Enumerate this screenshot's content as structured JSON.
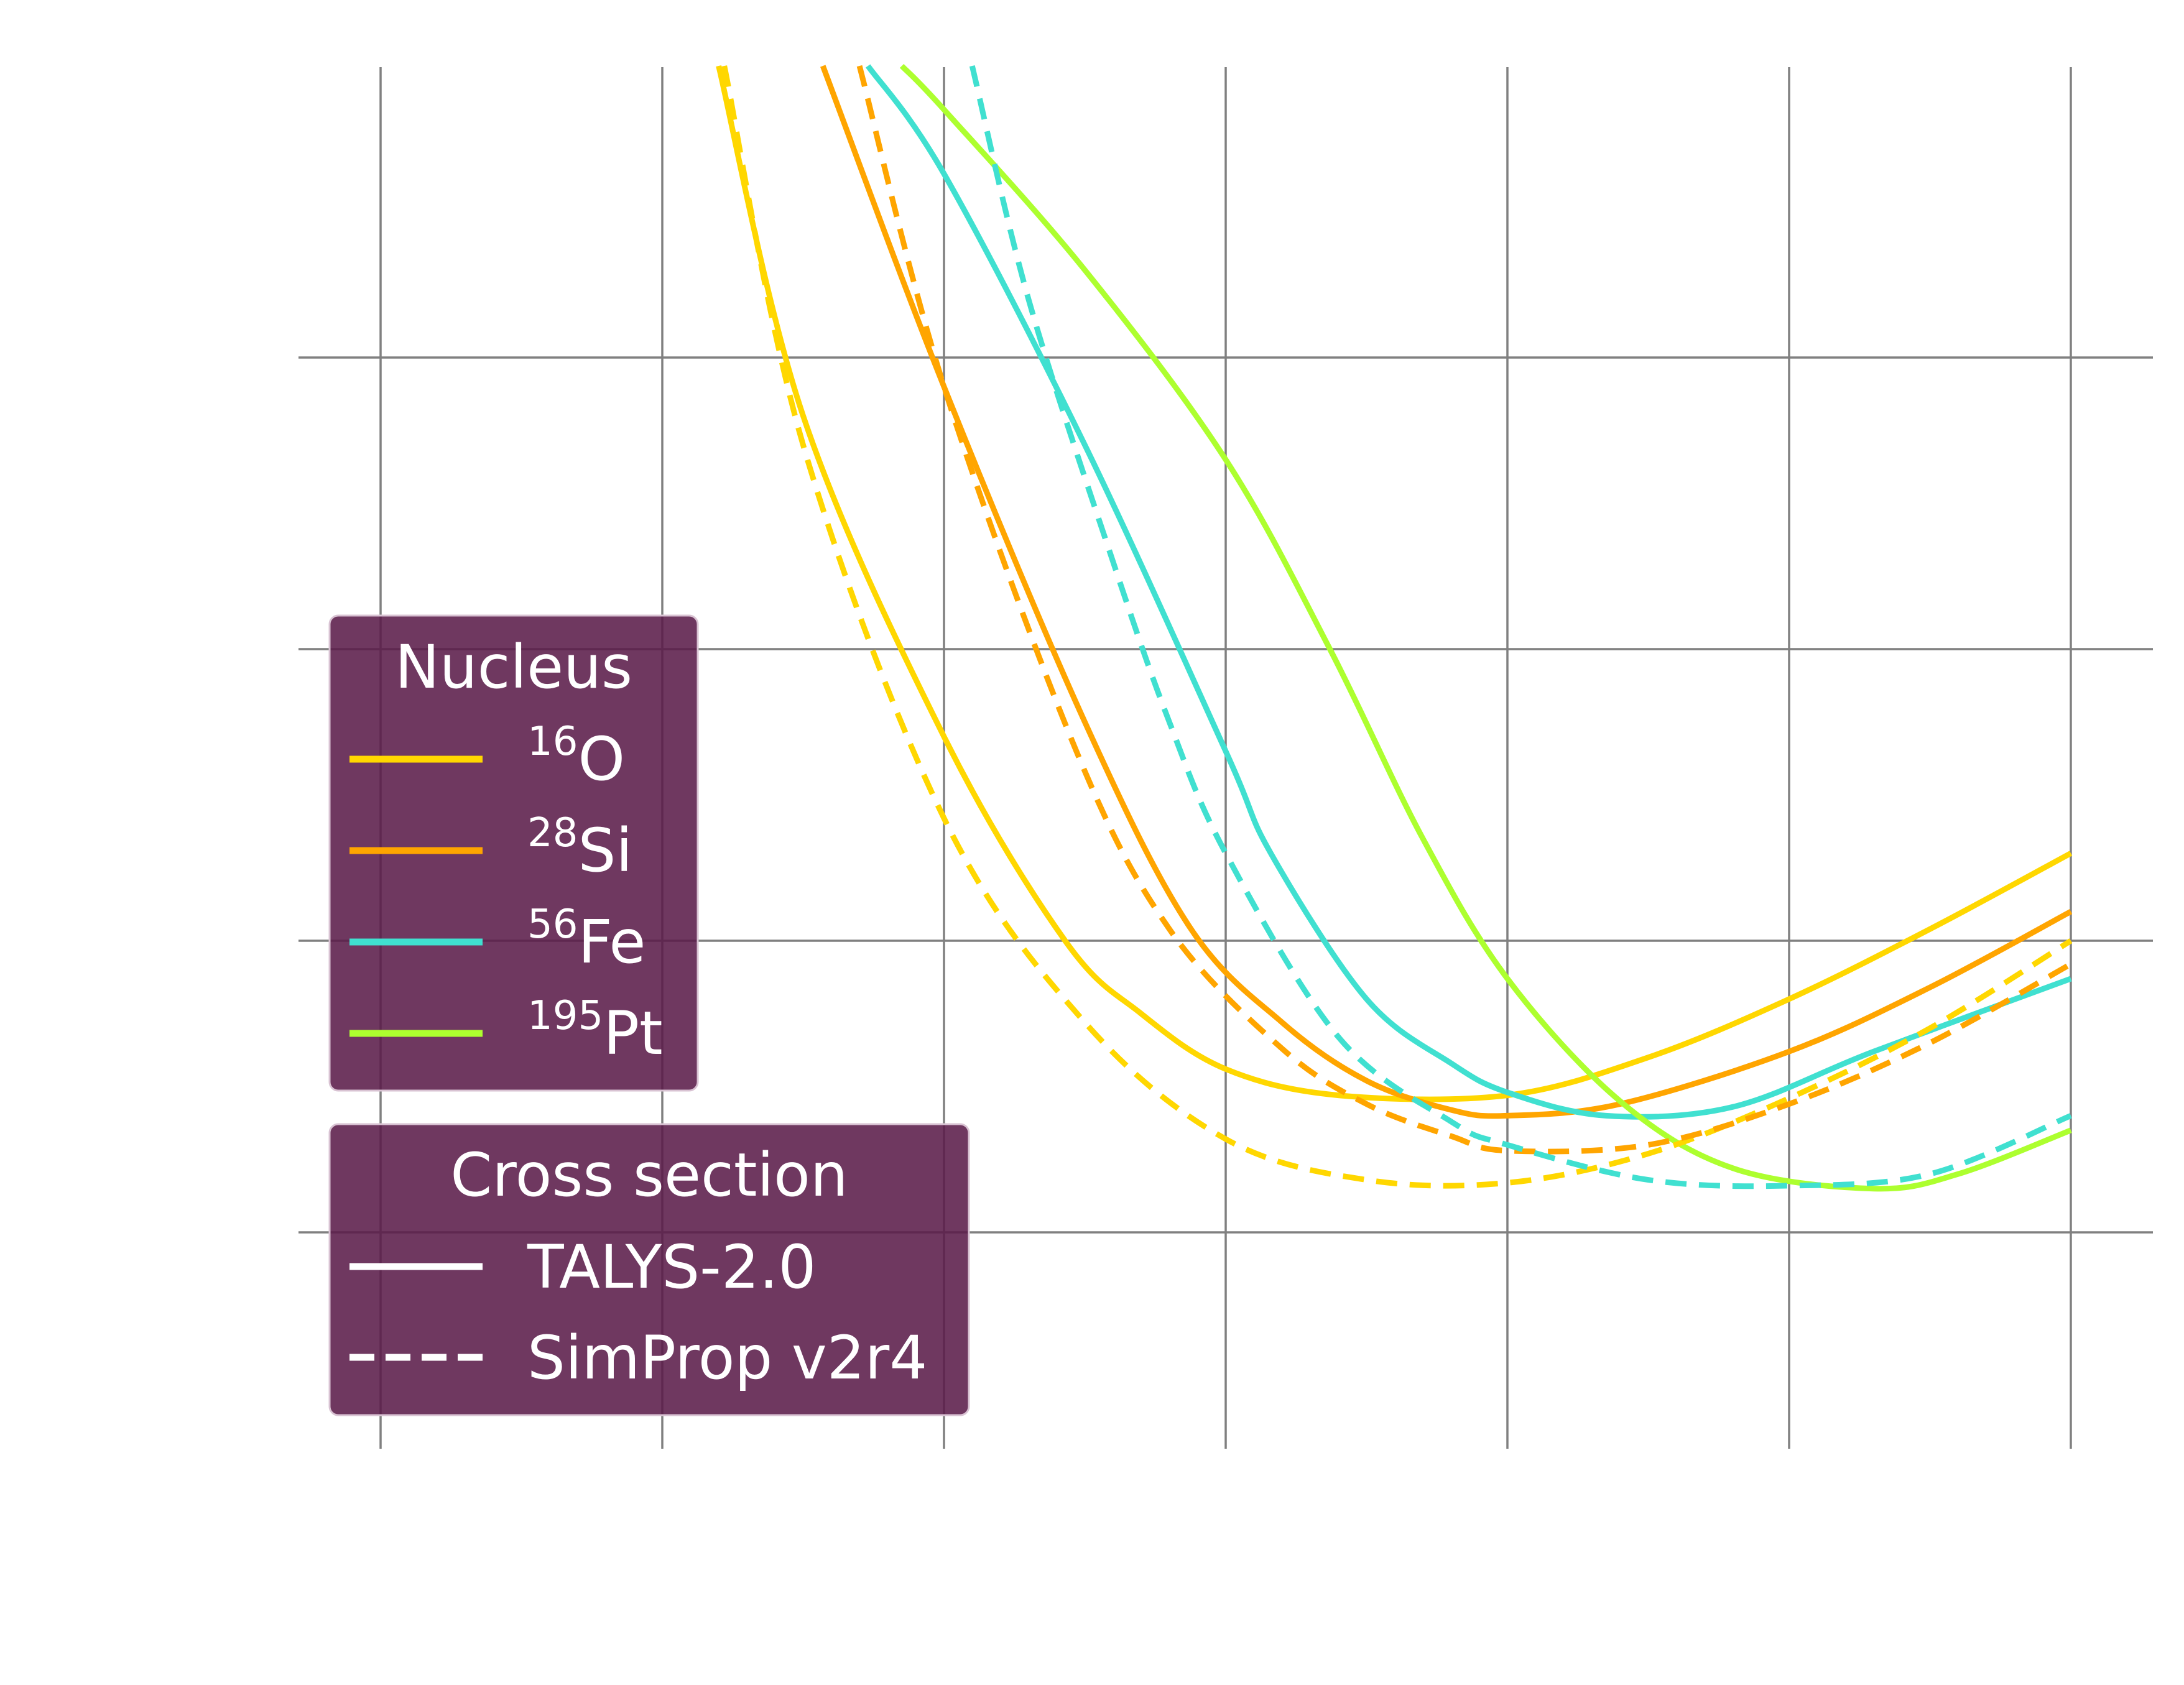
{
  "chart_data": {
    "type": "line",
    "title": "",
    "xlabel": "",
    "ylabel": "",
    "xlim": [
      -1.3,
      5.3
    ],
    "ylim": [
      -1.0,
      3.9
    ],
    "x_ticks": [
      -1,
      0,
      1,
      2,
      3,
      4,
      5
    ],
    "y_ticks": [
      0,
      1,
      2,
      3
    ],
    "grid": true,
    "colors": {
      "16O": "#FFD700",
      "28Si": "#FFA500",
      "56Fe": "#40E0D0",
      "195Pt": "#ADFF2F"
    },
    "series": [
      {
        "nucleus": "16O",
        "model": "TALYS-2.0",
        "style": "solid",
        "color": "#FFD700",
        "x": [
          0.2,
          0.5,
          1.0,
          1.43,
          1.7,
          2.0,
          2.4,
          3.0,
          3.5,
          4.0,
          4.5,
          5.0
        ],
        "y": [
          4.0,
          2.8,
          1.7,
          1.0,
          0.75,
          0.56,
          0.47,
          0.47,
          0.6,
          0.8,
          1.04,
          1.3
        ]
      },
      {
        "nucleus": "28Si",
        "model": "TALYS-2.0",
        "style": "solid",
        "color": "#FFA500",
        "x": [
          0.57,
          1.0,
          1.5,
          1.87,
          2.2,
          2.5,
          2.8,
          3.0,
          3.4,
          4.0,
          4.5,
          5.0
        ],
        "y": [
          4.0,
          2.9,
          1.75,
          1.05,
          0.72,
          0.52,
          0.42,
          0.4,
          0.44,
          0.62,
          0.84,
          1.1
        ]
      },
      {
        "nucleus": "56Fe",
        "model": "TALYS-2.0",
        "style": "solid",
        "color": "#40E0D0",
        "x": [
          0.73,
          1.0,
          1.5,
          2.0,
          2.16,
          2.5,
          2.8,
          3.0,
          3.35,
          3.8,
          4.3,
          5.0
        ],
        "y": [
          4.0,
          3.63,
          2.7,
          1.65,
          1.3,
          0.8,
          0.58,
          0.48,
          0.4,
          0.43,
          0.62,
          0.87
        ]
      },
      {
        "nucleus": "195Pt",
        "model": "TALYS-2.0",
        "style": "solid",
        "color": "#ADFF2F",
        "x": [
          0.85,
          1.0,
          1.5,
          2.0,
          2.37,
          2.7,
          3.0,
          3.4,
          3.8,
          4.3,
          4.6,
          5.0
        ],
        "y": [
          4.0,
          3.85,
          3.3,
          2.65,
          2.0,
          1.35,
          0.87,
          0.45,
          0.22,
          0.15,
          0.2,
          0.35
        ]
      },
      {
        "nucleus": "16O",
        "model": "SimProp v2r4",
        "style": "dashed",
        "color": "#FFD700",
        "x": [
          0.22,
          0.5,
          1.0,
          1.5,
          2.0,
          2.5,
          3.0,
          3.5,
          4.0,
          4.5,
          5.0
        ],
        "y": [
          4.0,
          2.7,
          1.42,
          0.72,
          0.32,
          0.18,
          0.17,
          0.27,
          0.46,
          0.7,
          1.0
        ]
      },
      {
        "nucleus": "28Si",
        "model": "SimProp v2r4",
        "style": "dashed",
        "color": "#FFA500",
        "x": [
          0.7,
          1.0,
          1.47,
          1.8,
          2.2,
          2.5,
          2.8,
          3.0,
          3.5,
          4.0,
          4.5,
          5.0
        ],
        "y": [
          4.0,
          2.9,
          1.65,
          1.04,
          0.63,
          0.44,
          0.33,
          0.28,
          0.3,
          0.44,
          0.65,
          0.92
        ]
      },
      {
        "nucleus": "56Fe",
        "model": "SimProp v2r4",
        "style": "dashed",
        "color": "#40E0D0",
        "x": [
          1.1,
          1.3,
          1.6,
          1.8,
          2.0,
          2.4,
          2.8,
          3.0,
          3.5,
          4.0,
          4.5,
          5.0
        ],
        "y": [
          4.0,
          3.2,
          2.3,
          1.75,
          1.3,
          0.67,
          0.38,
          0.3,
          0.18,
          0.16,
          0.2,
          0.4
        ]
      }
    ],
    "legends": [
      {
        "title": "Nucleus",
        "placement": "center-left",
        "entries": [
          {
            "sup": "16",
            "base": "O",
            "color": "#FFD700",
            "style": "solid"
          },
          {
            "sup": "28",
            "base": "Si",
            "color": "#FFA500",
            "style": "solid"
          },
          {
            "sup": "56",
            "base": "Fe",
            "color": "#40E0D0",
            "style": "solid"
          },
          {
            "sup": "195",
            "base": "Pt",
            "color": "#ADFF2F",
            "style": "solid"
          }
        ]
      },
      {
        "title": "Cross section",
        "placement": "lower-left",
        "entries": [
          {
            "label": "TALYS-2.0",
            "color": "#FFFFFF",
            "style": "solid"
          },
          {
            "label": "SimProp v2r4",
            "color": "#FFFFFF",
            "style": "dashed"
          }
        ]
      }
    ]
  }
}
